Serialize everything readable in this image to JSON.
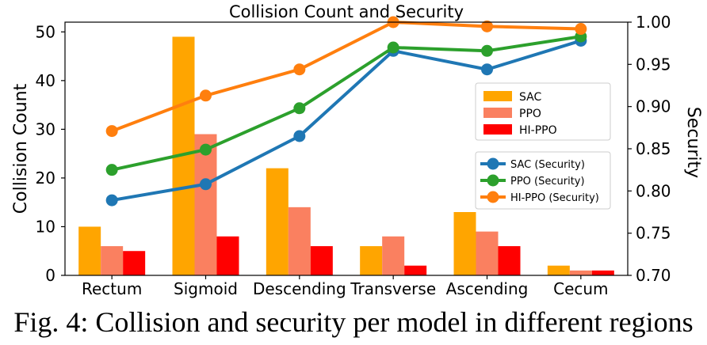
{
  "caption": "Fig. 4: Collision and security per model in different regions",
  "chart_data": {
    "type": "bar",
    "title": "Collision Count and Security",
    "xlabel": "",
    "ylabel": "Collision Count",
    "y2label": "Security",
    "categories": [
      "Rectum",
      "Sigmoid",
      "Descending",
      "Transverse",
      "Ascending",
      "Cecum"
    ],
    "ylim": [
      0,
      52
    ],
    "y2lim": [
      0.7,
      1.0
    ],
    "yticks": [
      0,
      10,
      20,
      30,
      40,
      50
    ],
    "y2ticks": [
      "0.70",
      "0.75",
      "0.80",
      "0.85",
      "0.90",
      "0.95",
      "1.00"
    ],
    "grid": false,
    "bar_series": [
      {
        "name": "SAC",
        "color": "#FFA500",
        "values": [
          10,
          49,
          22,
          6,
          13,
          2
        ]
      },
      {
        "name": "PPO",
        "color": "#FA8060",
        "values": [
          6,
          29,
          14,
          8,
          9,
          1
        ]
      },
      {
        "name": "HI-PPO",
        "color": "#FF0000",
        "values": [
          5,
          8,
          6,
          2,
          6,
          1
        ]
      }
    ],
    "line_series": [
      {
        "name": "SAC (Security)",
        "color": "#1F77B4",
        "values": [
          0.789,
          0.808,
          0.865,
          0.966,
          0.944,
          0.978
        ]
      },
      {
        "name": "PPO (Security)",
        "color": "#2CA02C",
        "values": [
          0.825,
          0.849,
          0.898,
          0.97,
          0.966,
          0.983
        ]
      },
      {
        "name": "HI-PPO (Security)",
        "color": "#FF7F0E",
        "values": [
          0.871,
          0.913,
          0.944,
          1.0,
          0.995,
          0.992
        ]
      }
    ],
    "legend_bars_position": "center-right",
    "legend_lines_position": "center-right"
  }
}
